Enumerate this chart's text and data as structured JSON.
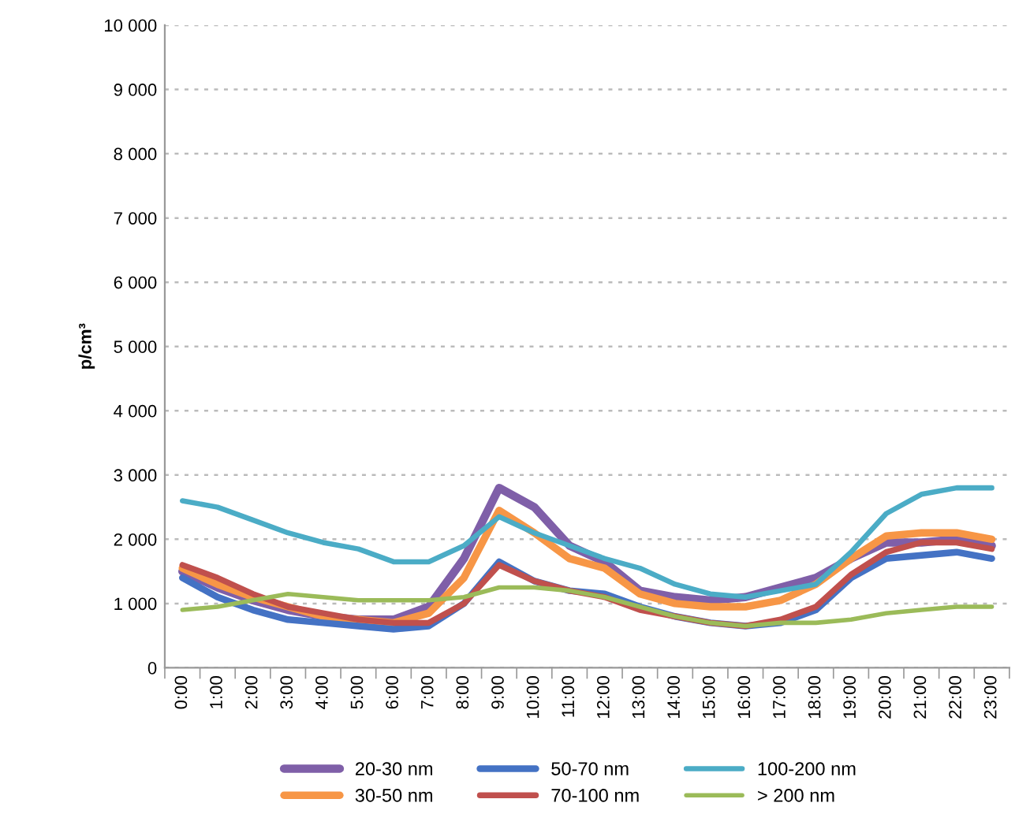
{
  "chart_data": {
    "type": "line",
    "ylabel": "p/cm³",
    "categories": [
      "0:00",
      "1:00",
      "2:00",
      "3:00",
      "4:00",
      "5:00",
      "6:00",
      "7:00",
      "8:00",
      "9:00",
      "10:00",
      "11:00",
      "12:00",
      "13:00",
      "14:00",
      "15:00",
      "16:00",
      "17:00",
      "18:00",
      "19:00",
      "20:00",
      "21:00",
      "22:00",
      "23:00"
    ],
    "series": [
      {
        "name": "20-30 nm",
        "color": "#7f5fa8",
        "values": [
          1500,
          1250,
          1050,
          900,
          800,
          750,
          750,
          950,
          1700,
          2800,
          2500,
          1900,
          1650,
          1200,
          1100,
          1050,
          1100,
          1250,
          1400,
          1700,
          1950,
          1950,
          2000,
          1900
        ]
      },
      {
        "name": "30-50 nm",
        "color": "#f79646",
        "values": [
          1550,
          1300,
          1100,
          950,
          800,
          750,
          700,
          850,
          1400,
          2450,
          2100,
          1700,
          1550,
          1150,
          1000,
          950,
          950,
          1050,
          1300,
          1700,
          2050,
          2100,
          2100,
          2000
        ]
      },
      {
        "name": "50-70 nm",
        "color": "#4472c4",
        "values": [
          1400,
          1100,
          900,
          750,
          700,
          650,
          600,
          650,
          1000,
          1650,
          1350,
          1200,
          1150,
          950,
          800,
          700,
          650,
          700,
          900,
          1400,
          1700,
          1750,
          1800,
          1700
        ]
      },
      {
        "name": "70-100 nm",
        "color": "#c0504d",
        "values": [
          1600,
          1400,
          1150,
          950,
          850,
          750,
          700,
          700,
          1000,
          1600,
          1350,
          1200,
          1100,
          900,
          800,
          700,
          650,
          750,
          950,
          1450,
          1800,
          1950,
          1950,
          1850
        ]
      },
      {
        "name": "100-200 nm",
        "color": "#4bacc6",
        "values": [
          2600,
          2500,
          2300,
          2100,
          1950,
          1850,
          1650,
          1650,
          1900,
          2350,
          2100,
          1900,
          1700,
          1550,
          1300,
          1150,
          1100,
          1200,
          1300,
          1800,
          2400,
          2700,
          2800,
          2800
        ]
      },
      {
        "name": "> 200 nm",
        "color": "#9bbb59",
        "values": [
          900,
          950,
          1050,
          1150,
          1100,
          1050,
          1050,
          1050,
          1100,
          1250,
          1250,
          1200,
          1100,
          950,
          800,
          700,
          650,
          700,
          700,
          750,
          850,
          900,
          950,
          950
        ]
      }
    ],
    "ylim": [
      0,
      10000
    ],
    "yticks": [
      0,
      {
        "value": 1000,
        "label": "1 000"
      },
      {
        "value": 2000,
        "label": "2 000"
      },
      {
        "value": 3000,
        "label": "3 000"
      },
      {
        "value": 4000,
        "label": "4 000"
      },
      {
        "value": 5000,
        "label": "5 000"
      },
      {
        "value": 6000,
        "label": "6 000"
      },
      {
        "value": 7000,
        "label": "7 000"
      },
      {
        "value": 8000,
        "label": "8 000"
      },
      {
        "value": 9000,
        "label": "9 000"
      },
      {
        "value": 10000,
        "label": "10 000"
      }
    ],
    "grid": "y",
    "legend": "bottom",
    "marker": "none",
    "line_style": "solid"
  }
}
